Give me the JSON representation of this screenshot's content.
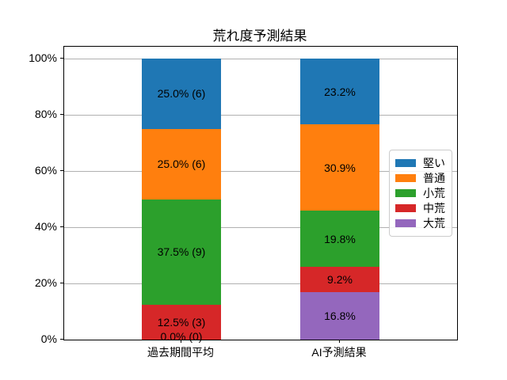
{
  "chart_data": {
    "type": "bar",
    "variant": "stacked",
    "title": "荒れ度予測結果",
    "categories": [
      "過去期間平均",
      "AI予測結果"
    ],
    "series": [
      {
        "name": "大荒",
        "color": "#9467bd",
        "values": [
          0.0,
          16.8
        ],
        "labels": [
          "0.0% (0)",
          "16.8%"
        ]
      },
      {
        "name": "中荒",
        "color": "#d62728",
        "values": [
          12.5,
          9.2
        ],
        "labels": [
          "12.5% (3)",
          "9.2%"
        ]
      },
      {
        "name": "小荒",
        "color": "#2ca02c",
        "values": [
          37.5,
          19.8
        ],
        "labels": [
          "37.5% (9)",
          "19.8%"
        ]
      },
      {
        "name": "普通",
        "color": "#ff7f0e",
        "values": [
          25.0,
          30.9
        ],
        "labels": [
          "25.0% (6)",
          "30.9%"
        ]
      },
      {
        "name": "堅い",
        "color": "#1f77b4",
        "values": [
          25.0,
          23.2
        ],
        "labels": [
          "25.0% (6)",
          "23.2%"
        ]
      }
    ],
    "legend": {
      "position": "right",
      "entries": [
        "堅い",
        "普通",
        "小荒",
        "中荒",
        "大荒"
      ]
    },
    "ylabel": "",
    "xlabel": "",
    "y_ticks": [
      {
        "pct": 0,
        "label": "0%"
      },
      {
        "pct": 20,
        "label": "20%"
      },
      {
        "pct": 40,
        "label": "40%"
      },
      {
        "pct": 60,
        "label": "60%"
      },
      {
        "pct": 80,
        "label": "80%"
      },
      {
        "pct": 100,
        "label": "100%"
      }
    ],
    "ylim": [
      0,
      104.2
    ],
    "grid": true,
    "colors": {
      "grid": "#b0b0b0",
      "spine": "#000000",
      "text": "#000000",
      "legend_border": "#cccccc",
      "background": "#ffffff"
    }
  }
}
